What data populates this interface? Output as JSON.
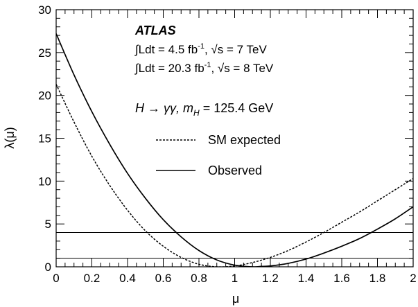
{
  "chart_data": {
    "type": "line",
    "title": "",
    "xlabel": "μ",
    "ylabel": "λ(μ)",
    "xlim": [
      0,
      2
    ],
    "ylim": [
      0,
      30
    ],
    "xticks": [
      "0",
      "0.2",
      "0.4",
      "0.6",
      "0.8",
      "1",
      "1.2",
      "1.4",
      "1.6",
      "1.8",
      "2"
    ],
    "yticks": [
      "0",
      "5",
      "10",
      "15",
      "20",
      "25",
      "30"
    ],
    "grid": false,
    "legend_position": "right-middle",
    "annotations": {
      "experiment": "ATLAS",
      "lumi_7_value": "∫Ldt = 4.5 fb",
      "lumi_7_exp": "-1",
      "lumi_7_energy": ", √s = 7 TeV",
      "lumi_8_value": "∫Ldt = 20.3 fb",
      "lumi_8_exp": "-1",
      "lumi_8_energy": ", √s = 8 TeV",
      "process": "H → γγ, ",
      "mass_symbol": "m",
      "mass_sub": "H",
      "mass_value": " = 125.4 GeV"
    },
    "reference_lines": [
      1,
      4
    ],
    "series": [
      {
        "name": "SM expected",
        "style": "dashed",
        "x": [
          0,
          0.1,
          0.2,
          0.3,
          0.4,
          0.5,
          0.6,
          0.7,
          0.8,
          0.9,
          1.0,
          1.1,
          1.2,
          1.3,
          1.4,
          1.5,
          1.6,
          1.7,
          1.8,
          1.9,
          2.0
        ],
        "y": [
          21.3,
          16.9,
          12.9,
          9.5,
          6.6,
          4.2,
          2.4,
          1.1,
          0.3,
          0.0,
          0.1,
          0.5,
          1.1,
          1.9,
          2.9,
          4.0,
          5.2,
          6.4,
          7.7,
          9.0,
          10.3
        ]
      },
      {
        "name": "Observed",
        "style": "solid",
        "x": [
          0,
          0.1,
          0.2,
          0.3,
          0.4,
          0.5,
          0.6,
          0.7,
          0.8,
          0.9,
          1.0,
          1.1,
          1.15,
          1.2,
          1.3,
          1.4,
          1.5,
          1.6,
          1.7,
          1.8,
          1.9,
          2.0
        ],
        "y": [
          27.2,
          22.4,
          18.1,
          14.3,
          10.9,
          8.0,
          5.5,
          3.5,
          1.9,
          0.8,
          0.2,
          0.0,
          0.05,
          0.1,
          0.4,
          0.9,
          1.6,
          2.4,
          3.3,
          4.4,
          5.6,
          7.0
        ]
      }
    ]
  }
}
